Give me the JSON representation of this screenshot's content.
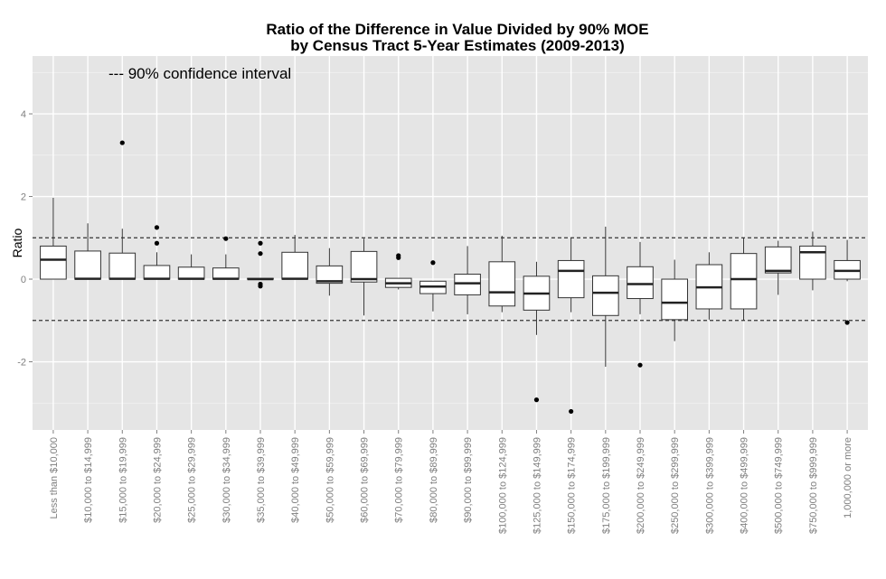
{
  "chart_data": {
    "type": "boxplot",
    "title_line1": "Ratio of the Difference in Value Divided by 90% MOE",
    "title_line2": "by Census Tract 5-Year Estimates (2009-2013)",
    "xlabel": "",
    "ylabel": "Ratio",
    "annotation": "--- 90% confidence interval",
    "ylim": [
      -3.65,
      5.4
    ],
    "yticks": [
      -2,
      0,
      2,
      4
    ],
    "reference_lines": [
      1,
      -1
    ],
    "grid": true,
    "colors": {
      "panel": "#e5e5e5",
      "grid_major": "#ffffff",
      "grid_minor": "#f2f2f2",
      "box_fill": "#ffffff",
      "box_stroke": "#333333"
    },
    "categories": [
      "Less than $10,000",
      "$10,000 to $14,999",
      "$15,000 to $19,999",
      "$20,000 to $24,999",
      "$25,000 to $29,999",
      "$30,000 to $34,999",
      "$35,000 to $39,999",
      "$40,000 to $49,999",
      "$50,000 to $59,999",
      "$60,000 to $69,999",
      "$70,000 to $79,999",
      "$80,000 to $89,999",
      "$90,000 to $99,999",
      "$100,000 to $124,999",
      "$125,000 to $149,999",
      "$150,000 to $174,999",
      "$175,000 to $199,999",
      "$200,000 to $249,999",
      "$250,000 to $299,999",
      "$300,000 to $399,999",
      "$400,000 to $499,999",
      "$500,000 to $749,999",
      "$750,000 to $999,999",
      "1,000,000 or more"
    ],
    "boxes": [
      {
        "whisker_low": 0,
        "q1": 0,
        "median": 0.47,
        "q3": 0.8,
        "whisker_high": 1.97,
        "outliers": []
      },
      {
        "whisker_low": 0,
        "q1": 0,
        "median": 0.01,
        "q3": 0.68,
        "whisker_high": 1.35,
        "outliers": []
      },
      {
        "whisker_low": 0,
        "q1": 0,
        "median": 0.01,
        "q3": 0.63,
        "whisker_high": 1.22,
        "outliers": [
          3.3
        ]
      },
      {
        "whisker_low": 0,
        "q1": 0,
        "median": 0.01,
        "q3": 0.33,
        "whisker_high": 0.65,
        "outliers": [
          1.25,
          0.87
        ]
      },
      {
        "whisker_low": 0,
        "q1": 0,
        "median": 0.01,
        "q3": 0.29,
        "whisker_high": 0.6,
        "outliers": []
      },
      {
        "whisker_low": 0,
        "q1": 0,
        "median": 0.01,
        "q3": 0.27,
        "whisker_high": 0.6,
        "outliers": [
          0.98
        ]
      },
      {
        "whisker_low": 0,
        "q1": 0,
        "median": 0.0,
        "q3": 0.02,
        "whisker_high": 0.02,
        "outliers": [
          0.87,
          0.62,
          -0.12,
          -0.17
        ]
      },
      {
        "whisker_low": 0,
        "q1": 0,
        "median": 0.01,
        "q3": 0.65,
        "whisker_high": 1.07,
        "outliers": []
      },
      {
        "whisker_low": -0.4,
        "q1": -0.1,
        "median": -0.05,
        "q3": 0.32,
        "whisker_high": 0.75,
        "outliers": []
      },
      {
        "whisker_low": -0.88,
        "q1": -0.07,
        "median": 0.0,
        "q3": 0.67,
        "whisker_high": 0.98,
        "outliers": []
      },
      {
        "whisker_low": -0.25,
        "q1": -0.2,
        "median": -0.1,
        "q3": 0.02,
        "whisker_high": 0.02,
        "outliers": [
          0.57,
          0.52
        ]
      },
      {
        "whisker_low": -0.78,
        "q1": -0.35,
        "median": -0.18,
        "q3": -0.05,
        "whisker_high": -0.05,
        "outliers": [
          0.4
        ]
      },
      {
        "whisker_low": -0.85,
        "q1": -0.38,
        "median": -0.1,
        "q3": 0.12,
        "whisker_high": 0.8,
        "outliers": []
      },
      {
        "whisker_low": -0.8,
        "q1": -0.65,
        "median": -0.32,
        "q3": 0.42,
        "whisker_high": 1.05,
        "outliers": []
      },
      {
        "whisker_low": -1.35,
        "q1": -0.75,
        "median": -0.35,
        "q3": 0.07,
        "whisker_high": 0.42,
        "outliers": [
          -2.92
        ]
      },
      {
        "whisker_low": -0.8,
        "q1": -0.45,
        "median": 0.2,
        "q3": 0.45,
        "whisker_high": 1.0,
        "outliers": [
          -3.2
        ]
      },
      {
        "whisker_low": -2.12,
        "q1": -0.88,
        "median": -0.33,
        "q3": 0.08,
        "whisker_high": 1.27,
        "outliers": []
      },
      {
        "whisker_low": -0.85,
        "q1": -0.47,
        "median": -0.12,
        "q3": 0.3,
        "whisker_high": 0.9,
        "outliers": [
          -2.08
        ]
      },
      {
        "whisker_low": -1.5,
        "q1": -0.98,
        "median": -0.57,
        "q3": 0.0,
        "whisker_high": 0.47,
        "outliers": []
      },
      {
        "whisker_low": -0.98,
        "q1": -0.72,
        "median": -0.2,
        "q3": 0.35,
        "whisker_high": 0.65,
        "outliers": []
      },
      {
        "whisker_low": -1.0,
        "q1": -0.72,
        "median": 0.0,
        "q3": 0.62,
        "whisker_high": 1.0,
        "outliers": []
      },
      {
        "whisker_low": -0.38,
        "q1": 0.15,
        "median": 0.2,
        "q3": 0.78,
        "whisker_high": 0.93,
        "outliers": []
      },
      {
        "whisker_low": -0.27,
        "q1": 0,
        "median": 0.65,
        "q3": 0.8,
        "whisker_high": 1.15,
        "outliers": []
      },
      {
        "whisker_low": -0.05,
        "q1": 0,
        "median": 0.2,
        "q3": 0.45,
        "whisker_high": 0.95,
        "outliers": [
          -1.05
        ]
      }
    ]
  }
}
